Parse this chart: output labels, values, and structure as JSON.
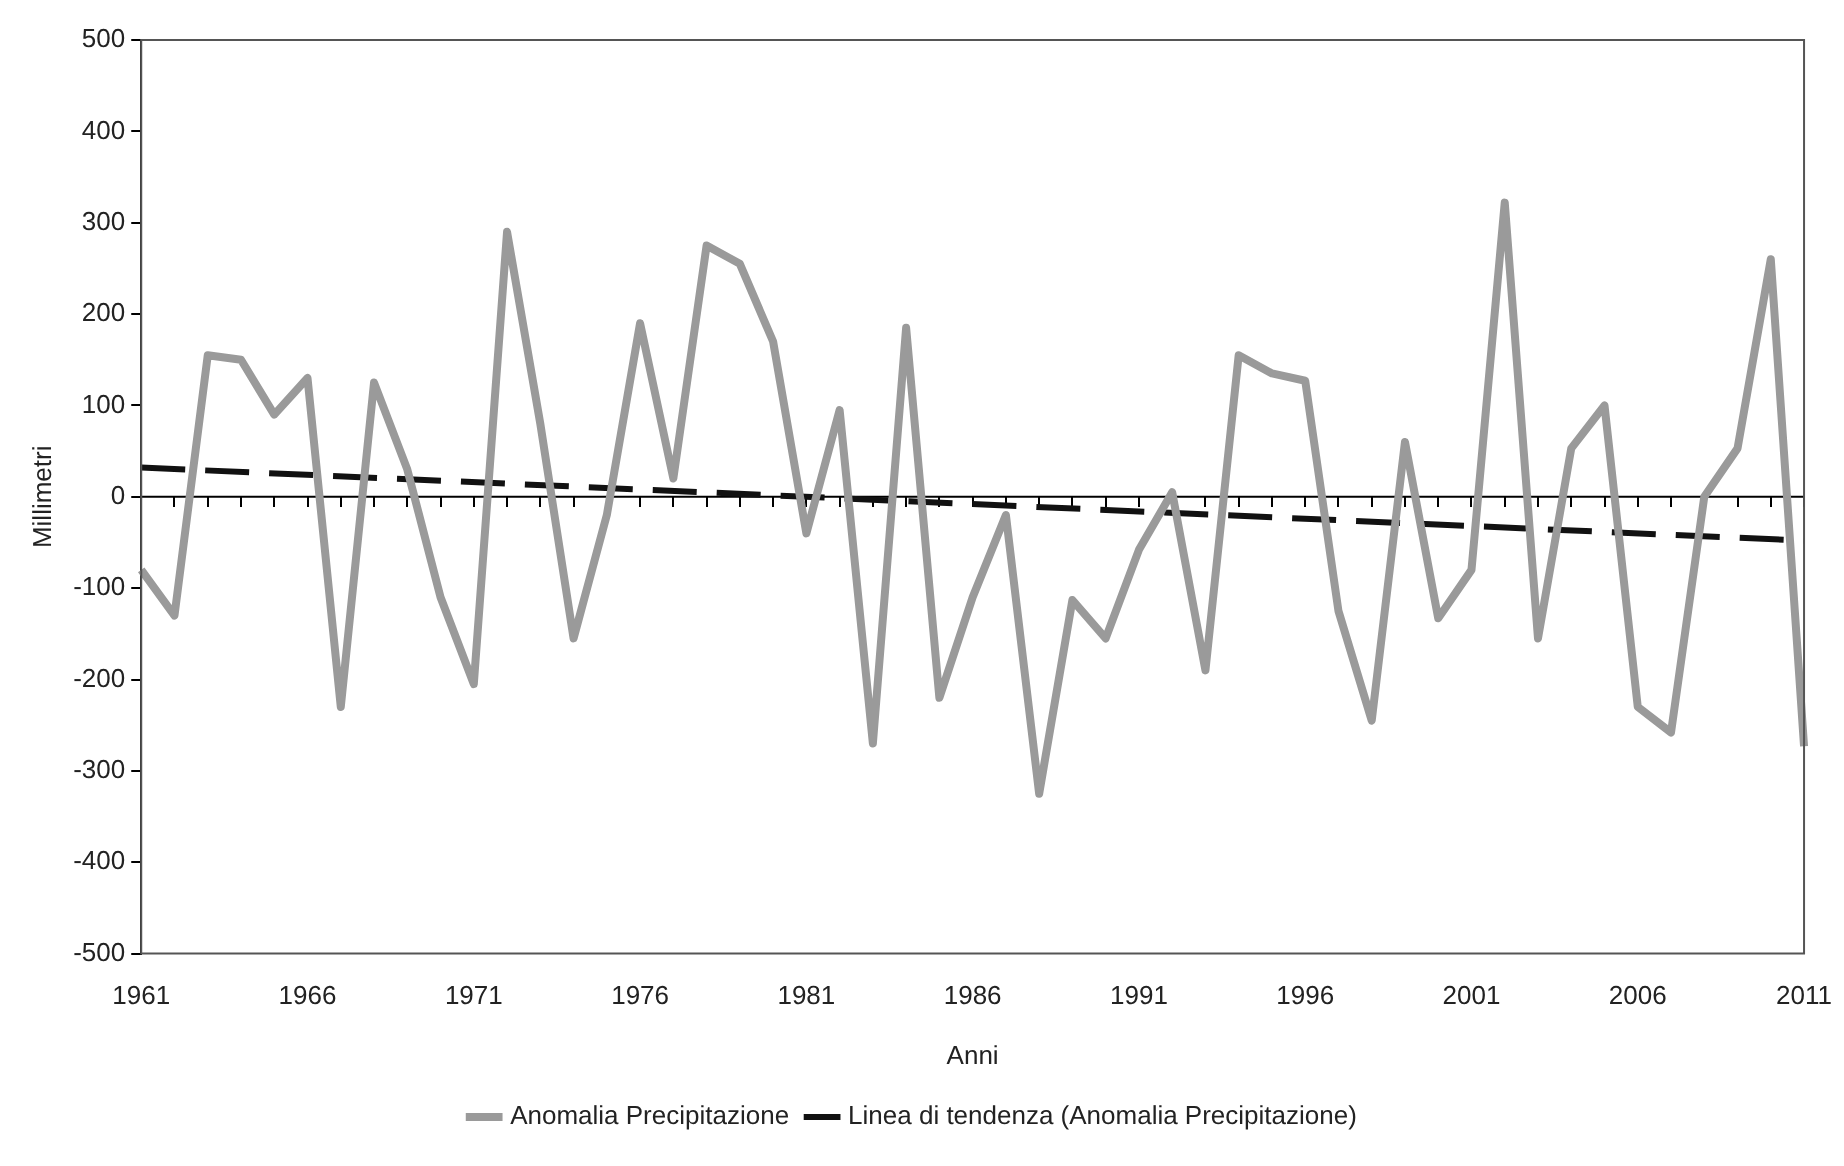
{
  "chart_data": {
    "type": "line",
    "xlabel": "Anni",
    "ylabel": "Millimetri",
    "categories": [
      "1961",
      null,
      null,
      null,
      null,
      "1966",
      null,
      null,
      null,
      null,
      "1971",
      null,
      null,
      null,
      null,
      "1976",
      null,
      null,
      null,
      null,
      "1981",
      null,
      null,
      null,
      null,
      "1986",
      null,
      null,
      null,
      null,
      "1991",
      null,
      null,
      null,
      null,
      "1996",
      null,
      null,
      null,
      null,
      "2001",
      null,
      null,
      null,
      null,
      "2006",
      null,
      null,
      null,
      null,
      "2011"
    ],
    "series": [
      {
        "name": "Anomalia Precipitazione",
        "color": "#9a9a9a",
        "line_style": "solid",
        "values": [
          -80,
          -130,
          155,
          150,
          90,
          130,
          -230,
          125,
          30,
          -110,
          -205,
          290,
          80,
          -155,
          -20,
          190,
          20,
          275,
          255,
          170,
          -40,
          95,
          -270,
          185,
          -220,
          -110,
          -20,
          -325,
          -113,
          -155,
          -58,
          5,
          -190,
          155,
          135,
          127,
          -125,
          -245,
          60,
          -133,
          -80,
          322,
          -155,
          53,
          100,
          -230,
          -258,
          0,
          53,
          260,
          -273
        ]
      },
      {
        "name": "Linea di tendenza (Anomalia Precipitazione)",
        "color": "#111111",
        "line_style": "dashed",
        "values": [
          32,
          null,
          null,
          null,
          null,
          null,
          null,
          null,
          null,
          null,
          null,
          null,
          null,
          null,
          null,
          null,
          null,
          null,
          null,
          null,
          null,
          null,
          null,
          null,
          null,
          null,
          null,
          null,
          null,
          null,
          null,
          null,
          null,
          null,
          null,
          null,
          null,
          null,
          null,
          null,
          null,
          null,
          null,
          null,
          null,
          null,
          null,
          null,
          null,
          null,
          -48
        ]
      }
    ],
    "ylim": [
      -500,
      500
    ],
    "yticks": [
      -500,
      -400,
      -300,
      -200,
      -100,
      0,
      100,
      200,
      300,
      400,
      500
    ],
    "ref_lines": [
      {
        "axis": "y",
        "value": 0,
        "color": "#000000",
        "line_style": "solid"
      }
    ],
    "grid": false,
    "legend": "bottom",
    "marker": "none"
  }
}
